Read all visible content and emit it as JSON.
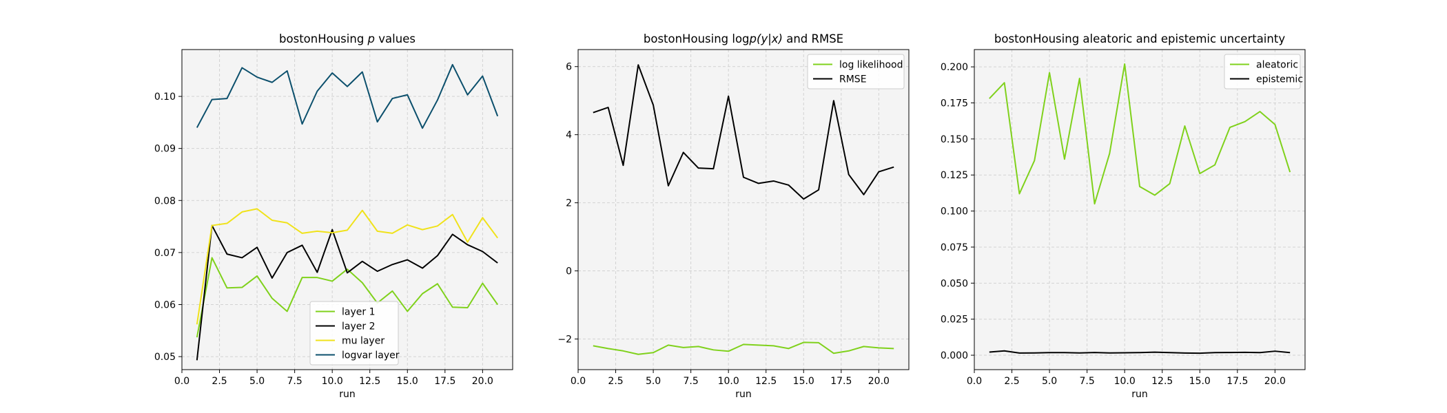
{
  "chart_data": [
    {
      "type": "line",
      "title_prefix": "bostonHousing ",
      "title_italic": "p",
      "title_suffix": " values",
      "xlabel": "run",
      "ylabel": "",
      "xlim": [
        0,
        22
      ],
      "ylim": [
        0.0475,
        0.109
      ],
      "xticks": [
        "0.0",
        "2.5",
        "5.0",
        "7.5",
        "10.0",
        "12.5",
        "15.0",
        "17.5",
        "20.0"
      ],
      "yticks": [
        "0.05",
        "0.06",
        "0.07",
        "0.08",
        "0.09",
        "0.10"
      ],
      "grid": true,
      "legend_position": "lower-center",
      "x": [
        1,
        2,
        3,
        4,
        5,
        6,
        7,
        8,
        9,
        10,
        11,
        12,
        13,
        14,
        15,
        16,
        17,
        18,
        19,
        20,
        21
      ],
      "series": [
        {
          "name": "layer 1",
          "color": "#7fd11b",
          "values": [
            0.0537,
            0.069,
            0.0632,
            0.0633,
            0.0655,
            0.0612,
            0.0587,
            0.0652,
            0.0652,
            0.0645,
            0.0668,
            0.0642,
            0.0603,
            0.0626,
            0.0587,
            0.0621,
            0.064,
            0.0595,
            0.0594,
            0.0641,
            0.06
          ]
        },
        {
          "name": "layer 2",
          "color": "#000000",
          "values": [
            0.0493,
            0.0752,
            0.0697,
            0.069,
            0.071,
            0.0651,
            0.07,
            0.0714,
            0.0662,
            0.0744,
            0.0661,
            0.0683,
            0.0664,
            0.0677,
            0.0686,
            0.067,
            0.0694,
            0.0735,
            0.0715,
            0.0702,
            0.068
          ]
        },
        {
          "name": "mu layer",
          "color": "#f0e21a",
          "values": [
            0.0562,
            0.0752,
            0.0756,
            0.0778,
            0.0784,
            0.0762,
            0.0757,
            0.0737,
            0.0741,
            0.0738,
            0.0743,
            0.0781,
            0.0741,
            0.0737,
            0.0753,
            0.0744,
            0.0751,
            0.0773,
            0.072,
            0.0767,
            0.0728
          ]
        },
        {
          "name": "logvar layer",
          "color": "#0b4f6c",
          "values": [
            0.094,
            0.0994,
            0.0996,
            0.1055,
            0.1037,
            0.1027,
            0.1049,
            0.0947,
            0.101,
            0.1045,
            0.1019,
            0.1047,
            0.0951,
            0.0996,
            0.1003,
            0.0939,
            0.0993,
            0.1061,
            0.1003,
            0.1039,
            0.0962
          ]
        }
      ]
    },
    {
      "type": "line",
      "title_prefix": "bostonHousing log",
      "title_italic": "p(y|x)",
      "title_suffix": " and RMSE",
      "xlabel": "run",
      "ylabel": "",
      "xlim": [
        0,
        22
      ],
      "ylim": [
        -2.9,
        6.5
      ],
      "xticks": [
        "0.0",
        "2.5",
        "5.0",
        "7.5",
        "10.0",
        "12.5",
        "15.0",
        "17.5",
        "20.0"
      ],
      "yticks": [
        "−2",
        "0",
        "2",
        "4",
        "6"
      ],
      "grid": true,
      "legend_position": "top-right",
      "x": [
        1,
        2,
        3,
        4,
        5,
        6,
        7,
        8,
        9,
        10,
        11,
        12,
        13,
        14,
        15,
        16,
        17,
        18,
        19,
        20,
        21
      ],
      "series": [
        {
          "name": "log likelihood",
          "color": "#7fd11b",
          "values": [
            -2.2,
            -2.28,
            -2.35,
            -2.45,
            -2.4,
            -2.18,
            -2.25,
            -2.22,
            -2.32,
            -2.36,
            -2.16,
            -2.18,
            -2.2,
            -2.28,
            -2.1,
            -2.11,
            -2.42,
            -2.35,
            -2.22,
            -2.26,
            -2.28
          ]
        },
        {
          "name": "RMSE",
          "color": "#000000",
          "values": [
            4.65,
            4.8,
            3.1,
            6.05,
            4.87,
            2.5,
            3.48,
            3.02,
            3.0,
            5.13,
            2.75,
            2.57,
            2.64,
            2.52,
            2.11,
            2.38,
            5.0,
            2.83,
            2.24,
            2.91,
            3.05
          ]
        }
      ]
    },
    {
      "type": "line",
      "title_prefix": "bostonHousing aleatoric and epistemic uncertainty",
      "title_italic": "",
      "title_suffix": "",
      "xlabel": "run",
      "ylabel": "",
      "xlim": [
        0,
        22
      ],
      "ylim": [
        -0.01,
        0.212
      ],
      "xticks": [
        "0.0",
        "2.5",
        "5.0",
        "7.5",
        "10.0",
        "12.5",
        "15.0",
        "17.5",
        "20.0"
      ],
      "yticks": [
        "0.000",
        "0.025",
        "0.050",
        "0.075",
        "0.100",
        "0.125",
        "0.150",
        "0.175",
        "0.200"
      ],
      "grid": true,
      "legend_position": "top-right",
      "x": [
        1,
        2,
        3,
        4,
        5,
        6,
        7,
        8,
        9,
        10,
        11,
        12,
        13,
        14,
        15,
        16,
        17,
        18,
        19,
        20,
        21
      ],
      "series": [
        {
          "name": "aleatoric",
          "color": "#7fd11b",
          "values": [
            0.178,
            0.189,
            0.112,
            0.135,
            0.196,
            0.136,
            0.192,
            0.105,
            0.14,
            0.202,
            0.117,
            0.111,
            0.119,
            0.159,
            0.126,
            0.132,
            0.158,
            0.162,
            0.169,
            0.16,
            0.127
          ]
        },
        {
          "name": "epistemic",
          "color": "#000000",
          "values": [
            0.0022,
            0.003,
            0.0015,
            0.0016,
            0.0018,
            0.0018,
            0.0016,
            0.0019,
            0.0016,
            0.0017,
            0.0018,
            0.0021,
            0.0018,
            0.0015,
            0.0014,
            0.0018,
            0.0019,
            0.002,
            0.0018,
            0.0028,
            0.0018
          ]
        }
      ]
    }
  ]
}
